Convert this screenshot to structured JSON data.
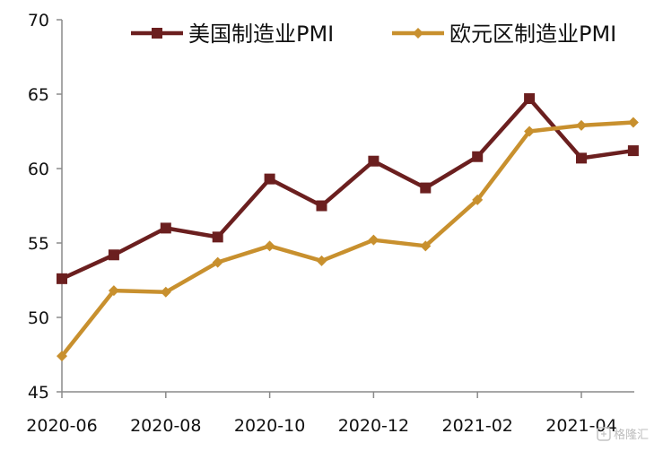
{
  "chart_data": {
    "type": "line",
    "title": "",
    "xlabel": "",
    "ylabel": "",
    "x": [
      "2020-06",
      "2020-07",
      "2020-08",
      "2020-09",
      "2020-10",
      "2020-11",
      "2020-12",
      "2021-01",
      "2021-02",
      "2021-03",
      "2021-04",
      "2021-05"
    ],
    "x_tick_labels": [
      "2020-06",
      "2020-08",
      "2020-10",
      "2020-12",
      "2021-02",
      "2021-04"
    ],
    "ylim": [
      45,
      70
    ],
    "y_ticks": [
      45,
      50,
      55,
      60,
      65,
      70
    ],
    "grid": false,
    "legend_position": "top",
    "series": [
      {
        "name": "美国制造业PMI",
        "color": "#6b1f1f",
        "marker": "square",
        "values": [
          52.6,
          54.2,
          56.0,
          55.4,
          59.3,
          57.5,
          60.5,
          58.7,
          60.8,
          64.7,
          60.7,
          61.2
        ]
      },
      {
        "name": "欧元区制造业PMI",
        "color": "#c8902e",
        "marker": "diamond",
        "values": [
          47.4,
          51.8,
          51.7,
          53.7,
          54.8,
          53.8,
          55.2,
          54.8,
          57.9,
          62.5,
          62.9,
          63.1
        ]
      }
    ]
  },
  "watermark": {
    "text": "格隆汇",
    "icon": "gelonghui-logo-icon"
  }
}
